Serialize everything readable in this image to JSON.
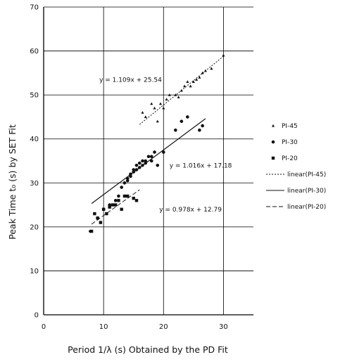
{
  "chart_data": {
    "type": "scatter",
    "xlabel": "Period 1/λ (s) Obtained by the PD Fit",
    "ylabel": "Peak Time t₀ (s) by SET Fit",
    "xlim": [
      0,
      35
    ],
    "ylim": [
      0,
      70
    ],
    "xticks": [
      0,
      10,
      20,
      30
    ],
    "yticks": [
      0,
      10,
      20,
      30,
      40,
      50,
      60,
      70
    ],
    "grid": true,
    "legend_position": "right",
    "series": [
      {
        "name": "PI-45",
        "marker": "triangle",
        "points": [
          [
            16.5,
            46
          ],
          [
            17,
            45
          ],
          [
            18,
            48
          ],
          [
            18.5,
            47
          ],
          [
            19,
            44
          ],
          [
            19.5,
            48
          ],
          [
            20,
            47
          ],
          [
            20.5,
            49
          ],
          [
            21,
            50
          ],
          [
            22,
            50
          ],
          [
            22.5,
            49.5
          ],
          [
            23,
            51
          ],
          [
            23.5,
            52
          ],
          [
            24,
            53
          ],
          [
            24.5,
            52
          ],
          [
            25,
            53
          ],
          [
            25.5,
            53.5
          ],
          [
            26,
            54
          ],
          [
            26.5,
            55
          ],
          [
            27,
            55.5
          ],
          [
            28,
            56
          ],
          [
            30,
            59
          ]
        ]
      },
      {
        "name": "PI-30",
        "marker": "circle",
        "points": [
          [
            7.8,
            19
          ],
          [
            9,
            22
          ],
          [
            10,
            24
          ],
          [
            11,
            25
          ],
          [
            12,
            26
          ],
          [
            12.5,
            27
          ],
          [
            13,
            29
          ],
          [
            13.5,
            30
          ],
          [
            14,
            31
          ],
          [
            14.5,
            32
          ],
          [
            15,
            33
          ],
          [
            15.5,
            34
          ],
          [
            16,
            34.5
          ],
          [
            16.5,
            35
          ],
          [
            17,
            35
          ],
          [
            17.5,
            36
          ],
          [
            18,
            36
          ],
          [
            18.5,
            37
          ],
          [
            14,
            30.5
          ],
          [
            14.5,
            31.5
          ],
          [
            15,
            32.5
          ],
          [
            15.5,
            33
          ],
          [
            16,
            33.5
          ],
          [
            16.5,
            34
          ],
          [
            17,
            34.5
          ],
          [
            18,
            35
          ],
          [
            19,
            34
          ],
          [
            20,
            37
          ],
          [
            22,
            42
          ],
          [
            23,
            44
          ],
          [
            24,
            45
          ],
          [
            26,
            42
          ],
          [
            26.5,
            43
          ]
        ]
      },
      {
        "name": "PI-20",
        "marker": "square",
        "points": [
          [
            8,
            19
          ],
          [
            8.5,
            23
          ],
          [
            9,
            22
          ],
          [
            9.5,
            21
          ],
          [
            10,
            24
          ],
          [
            10.5,
            23
          ],
          [
            11,
            24.5
          ],
          [
            11.5,
            25
          ],
          [
            12,
            25
          ],
          [
            12.5,
            26
          ],
          [
            13,
            24
          ],
          [
            13.5,
            27
          ],
          [
            14,
            27
          ],
          [
            15,
            26.5
          ],
          [
            15.5,
            26
          ]
        ]
      }
    ],
    "fits": [
      {
        "name": "linear(PI-45)",
        "equation": "y = 1.109x + 25.54",
        "slope": 1.109,
        "intercept": 25.54,
        "x_range": [
          16,
          30
        ],
        "style": "dotted"
      },
      {
        "name": "linear(PI-30)",
        "equation": "y = 1.016x + 17.18",
        "slope": 1.016,
        "intercept": 17.18,
        "x_range": [
          8,
          27
        ],
        "style": "solid"
      },
      {
        "name": "linear(PI-20)",
        "equation": "y = 0.978x + 12.79",
        "slope": 0.978,
        "intercept": 12.79,
        "x_range": [
          8,
          16
        ],
        "style": "dashed"
      }
    ],
    "colors": {
      "marker": "#111111",
      "grid": "#000000",
      "axis": "#000000",
      "legend_dash": "#888888"
    }
  }
}
